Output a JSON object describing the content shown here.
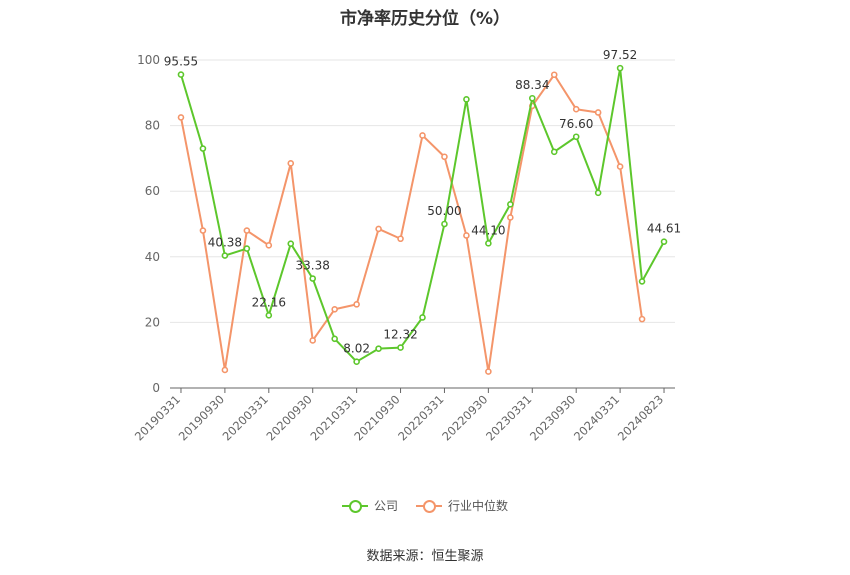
{
  "chart_data": {
    "type": "line",
    "title": "市净率历史分位（%）",
    "source": "数据来源：恒生聚源",
    "ylim": [
      0,
      100
    ],
    "yticks": [
      0,
      20,
      40,
      60,
      80,
      100
    ],
    "grid": true,
    "legend_position": "bottom",
    "x": [
      "20190331",
      "20190630",
      "20190930",
      "20191231",
      "20200331",
      "20200630",
      "20200930",
      "20201231",
      "20210331",
      "20210630",
      "20210930",
      "20211231",
      "20220331",
      "20220630",
      "20220930",
      "20221231",
      "20230331",
      "20230630",
      "20230930",
      "20231231",
      "20240331",
      "20240630",
      "20240823"
    ],
    "x_tick_labels": [
      "20190331",
      "20190930",
      "20200331",
      "20200930",
      "20210331",
      "20210930",
      "20220331",
      "20220930",
      "20230331",
      "20230930",
      "20240331",
      "20240823"
    ],
    "series": [
      {
        "name": "公司",
        "color": "#5dc72c",
        "values": [
          95.55,
          73,
          40.38,
          42.5,
          22.16,
          44,
          33.38,
          15,
          8.02,
          12,
          12.32,
          21.5,
          50.0,
          88,
          44.1,
          56,
          88.34,
          72,
          76.6,
          59.5,
          97.52,
          32.5,
          44.61
        ],
        "labels": [
          "95.55",
          null,
          "40.38",
          null,
          "22.16",
          null,
          "33.38",
          null,
          "8.02",
          null,
          "12.32",
          null,
          "50.00",
          null,
          "44.10",
          null,
          "88.34",
          null,
          "76.60",
          null,
          "97.52",
          null,
          "44.61"
        ]
      },
      {
        "name": "行业中位数",
        "color": "#f4956a",
        "values": [
          82.5,
          48,
          5.5,
          48,
          43.5,
          68.5,
          14.5,
          24,
          25.5,
          48.5,
          45.5,
          77,
          70.5,
          46.5,
          5,
          52,
          86,
          95.5,
          85,
          84,
          67.5,
          21,
          null
        ],
        "labels": []
      }
    ]
  }
}
